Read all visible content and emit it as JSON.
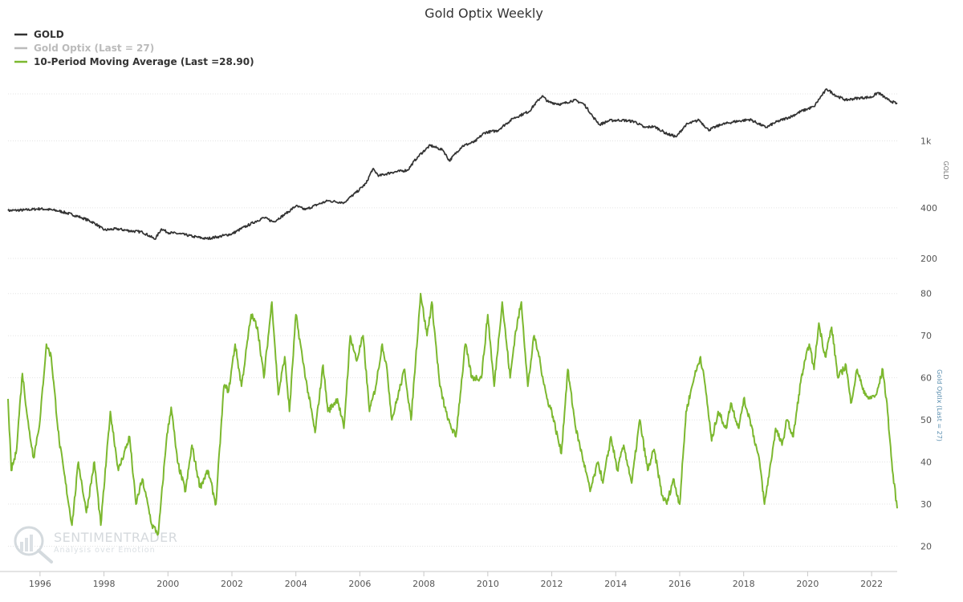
{
  "chart_data": {
    "type": "line",
    "title": "Gold Optix Weekly",
    "x_range": [
      1995.0,
      2022.8
    ],
    "x_ticks": [
      "1996",
      "1998",
      "2000",
      "2002",
      "2004",
      "2006",
      "2008",
      "2010",
      "2012",
      "2014",
      "2016",
      "2018",
      "2020",
      "2022"
    ],
    "grid": true,
    "legend": {
      "placement": "top-left",
      "entries": [
        {
          "label": "GOLD",
          "color": "#333333"
        },
        {
          "label": "Gold Optix (Last = 27)",
          "color": "#bbbbbb"
        },
        {
          "label": "10-Period Moving Average (Last =28.90)",
          "color": "#7cb82f"
        }
      ]
    },
    "panels": [
      {
        "id": "gold",
        "ylabel": "GOLD",
        "yscale": "log",
        "ylim": [
          200,
          2100
        ],
        "y_ticks": [
          {
            "value": 200,
            "label": "200"
          },
          {
            "value": 400,
            "label": "400"
          },
          {
            "value": 1000,
            "label": "1k"
          }
        ],
        "series": [
          {
            "name": "GOLD",
            "color": "#333333",
            "points": [
              [
                1995.0,
                385
              ],
              [
                1995.5,
                388
              ],
              [
                1996.0,
                395
              ],
              [
                1996.3,
                390
              ],
              [
                1996.6,
                383
              ],
              [
                1997.0,
                365
              ],
              [
                1997.3,
                350
              ],
              [
                1997.7,
                325
              ],
              [
                1998.0,
                295
              ],
              [
                1998.4,
                300
              ],
              [
                1998.8,
                292
              ],
              [
                1999.2,
                287
              ],
              [
                1999.6,
                260
              ],
              [
                1999.8,
                300
              ],
              [
                2000.0,
                285
              ],
              [
                2000.4,
                280
              ],
              [
                2000.8,
                270
              ],
              [
                2001.2,
                262
              ],
              [
                2001.6,
                270
              ],
              [
                2002.0,
                280
              ],
              [
                2002.5,
                315
              ],
              [
                2003.0,
                350
              ],
              [
                2003.3,
                330
              ],
              [
                2003.7,
                370
              ],
              [
                2004.0,
                410
              ],
              [
                2004.3,
                390
              ],
              [
                2004.7,
                420
              ],
              [
                2005.0,
                440
              ],
              [
                2005.5,
                430
              ],
              [
                2005.9,
                495
              ],
              [
                2006.2,
                560
              ],
              [
                2006.4,
                680
              ],
              [
                2006.6,
                620
              ],
              [
                2007.0,
                650
              ],
              [
                2007.5,
                670
              ],
              [
                2007.8,
                800
              ],
              [
                2008.2,
                940
              ],
              [
                2008.6,
                880
              ],
              [
                2008.8,
                760
              ],
              [
                2009.2,
                930
              ],
              [
                2009.6,
                990
              ],
              [
                2009.9,
                1120
              ],
              [
                2010.3,
                1150
              ],
              [
                2010.8,
                1360
              ],
              [
                2011.3,
                1500
              ],
              [
                2011.7,
                1850
              ],
              [
                2011.9,
                1700
              ],
              [
                2012.3,
                1650
              ],
              [
                2012.7,
                1750
              ],
              [
                2013.0,
                1660
              ],
              [
                2013.3,
                1380
              ],
              [
                2013.5,
                1250
              ],
              [
                2013.8,
                1320
              ],
              [
                2014.2,
                1330
              ],
              [
                2014.6,
                1300
              ],
              [
                2014.9,
                1200
              ],
              [
                2015.2,
                1220
              ],
              [
                2015.6,
                1100
              ],
              [
                2015.9,
                1060
              ],
              [
                2016.2,
                1250
              ],
              [
                2016.6,
                1330
              ],
              [
                2016.9,
                1160
              ],
              [
                2017.3,
                1250
              ],
              [
                2017.7,
                1300
              ],
              [
                2018.2,
                1340
              ],
              [
                2018.7,
                1200
              ],
              [
                2019.0,
                1290
              ],
              [
                2019.5,
                1400
              ],
              [
                2019.8,
                1500
              ],
              [
                2020.2,
                1600
              ],
              [
                2020.6,
                2030
              ],
              [
                2020.9,
                1850
              ],
              [
                2021.2,
                1750
              ],
              [
                2021.6,
                1800
              ],
              [
                2022.0,
                1820
              ],
              [
                2022.2,
                1940
              ],
              [
                2022.5,
                1760
              ],
              [
                2022.8,
                1660
              ]
            ]
          }
        ]
      },
      {
        "id": "optix",
        "ylabel": "Gold Optix (Last = 27)",
        "ylim": [
          14,
          83
        ],
        "y_ticks": [
          {
            "value": 20,
            "label": "20"
          },
          {
            "value": 30,
            "label": "30"
          },
          {
            "value": 40,
            "label": "40"
          },
          {
            "value": 50,
            "label": "50"
          },
          {
            "value": 60,
            "label": "60"
          },
          {
            "value": 70,
            "label": "70"
          },
          {
            "value": 80,
            "label": "80"
          }
        ],
        "series": [
          {
            "name": "10-Period Moving Average (Last =28.90)",
            "color": "#7cb82f",
            "points": [
              [
                1995.0,
                55
              ],
              [
                1995.1,
                38
              ],
              [
                1995.25,
                42
              ],
              [
                1995.45,
                61
              ],
              [
                1995.65,
                48
              ],
              [
                1995.8,
                41
              ],
              [
                1996.0,
                50
              ],
              [
                1996.2,
                68
              ],
              [
                1996.35,
                65
              ],
              [
                1996.6,
                45
              ],
              [
                1996.8,
                35
              ],
              [
                1997.0,
                25
              ],
              [
                1997.2,
                40
              ],
              [
                1997.45,
                28
              ],
              [
                1997.7,
                40
              ],
              [
                1997.9,
                25
              ],
              [
                1998.2,
                52
              ],
              [
                1998.45,
                38
              ],
              [
                1998.8,
                46
              ],
              [
                1999.0,
                30
              ],
              [
                1999.2,
                36
              ],
              [
                1999.5,
                25
              ],
              [
                1999.7,
                23
              ],
              [
                1999.95,
                45
              ],
              [
                2000.1,
                53
              ],
              [
                2000.3,
                40
              ],
              [
                2000.55,
                33
              ],
              [
                2000.75,
                44
              ],
              [
                2001.0,
                34
              ],
              [
                2001.25,
                38
              ],
              [
                2001.5,
                30
              ],
              [
                2001.75,
                58
              ],
              [
                2001.9,
                57
              ],
              [
                2002.1,
                68
              ],
              [
                2002.3,
                58
              ],
              [
                2002.6,
                75
              ],
              [
                2002.8,
                72
              ],
              [
                2003.0,
                60
              ],
              [
                2003.25,
                78
              ],
              [
                2003.45,
                56
              ],
              [
                2003.65,
                65
              ],
              [
                2003.8,
                52
              ],
              [
                2004.0,
                75
              ],
              [
                2004.2,
                65
              ],
              [
                2004.35,
                58
              ],
              [
                2004.6,
                47
              ],
              [
                2004.85,
                63
              ],
              [
                2005.0,
                52
              ],
              [
                2005.3,
                55
              ],
              [
                2005.5,
                48
              ],
              [
                2005.7,
                70
              ],
              [
                2005.9,
                64
              ],
              [
                2006.1,
                70
              ],
              [
                2006.3,
                52
              ],
              [
                2006.5,
                58
              ],
              [
                2006.7,
                68
              ],
              [
                2006.85,
                62
              ],
              [
                2007.0,
                50
              ],
              [
                2007.2,
                56
              ],
              [
                2007.4,
                62
              ],
              [
                2007.6,
                50
              ],
              [
                2007.9,
                80
              ],
              [
                2008.1,
                70
              ],
              [
                2008.25,
                78
              ],
              [
                2008.5,
                58
              ],
              [
                2008.75,
                50
              ],
              [
                2009.0,
                46
              ],
              [
                2009.3,
                68
              ],
              [
                2009.5,
                60
              ],
              [
                2009.8,
                60
              ],
              [
                2010.0,
                75
              ],
              [
                2010.2,
                58
              ],
              [
                2010.45,
                78
              ],
              [
                2010.7,
                60
              ],
              [
                2010.85,
                70
              ],
              [
                2011.05,
                78
              ],
              [
                2011.25,
                58
              ],
              [
                2011.45,
                70
              ],
              [
                2011.6,
                65
              ],
              [
                2011.85,
                55
              ],
              [
                2012.0,
                52
              ],
              [
                2012.3,
                42
              ],
              [
                2012.5,
                62
              ],
              [
                2012.75,
                48
              ],
              [
                2013.0,
                40
              ],
              [
                2013.2,
                33
              ],
              [
                2013.45,
                40
              ],
              [
                2013.6,
                35
              ],
              [
                2013.85,
                46
              ],
              [
                2014.05,
                38
              ],
              [
                2014.25,
                44
              ],
              [
                2014.5,
                35
              ],
              [
                2014.75,
                50
              ],
              [
                2015.0,
                38
              ],
              [
                2015.2,
                43
              ],
              [
                2015.45,
                32
              ],
              [
                2015.6,
                30
              ],
              [
                2015.8,
                36
              ],
              [
                2016.0,
                30
              ],
              [
                2016.2,
                52
              ],
              [
                2016.45,
                60
              ],
              [
                2016.65,
                65
              ],
              [
                2016.8,
                58
              ],
              [
                2017.0,
                45
              ],
              [
                2017.2,
                52
              ],
              [
                2017.45,
                48
              ],
              [
                2017.6,
                54
              ],
              [
                2017.85,
                48
              ],
              [
                2018.0,
                55
              ],
              [
                2018.2,
                50
              ],
              [
                2018.5,
                40
              ],
              [
                2018.65,
                30
              ],
              [
                2018.85,
                40
              ],
              [
                2019.0,
                48
              ],
              [
                2019.2,
                44
              ],
              [
                2019.35,
                50
              ],
              [
                2019.55,
                46
              ],
              [
                2019.8,
                60
              ],
              [
                2020.05,
                68
              ],
              [
                2020.2,
                62
              ],
              [
                2020.35,
                73
              ],
              [
                2020.55,
                65
              ],
              [
                2020.75,
                72
              ],
              [
                2020.95,
                60
              ],
              [
                2021.2,
                63
              ],
              [
                2021.35,
                54
              ],
              [
                2021.55,
                62
              ],
              [
                2021.7,
                58
              ],
              [
                2021.9,
                55
              ],
              [
                2022.15,
                56
              ],
              [
                2022.35,
                62
              ],
              [
                2022.5,
                52
              ],
              [
                2022.65,
                38
              ],
              [
                2022.8,
                29
              ]
            ]
          }
        ]
      }
    ]
  },
  "watermark": {
    "brand": "SENTIMENTRADER",
    "tagline": "Analysis over Emotion"
  }
}
